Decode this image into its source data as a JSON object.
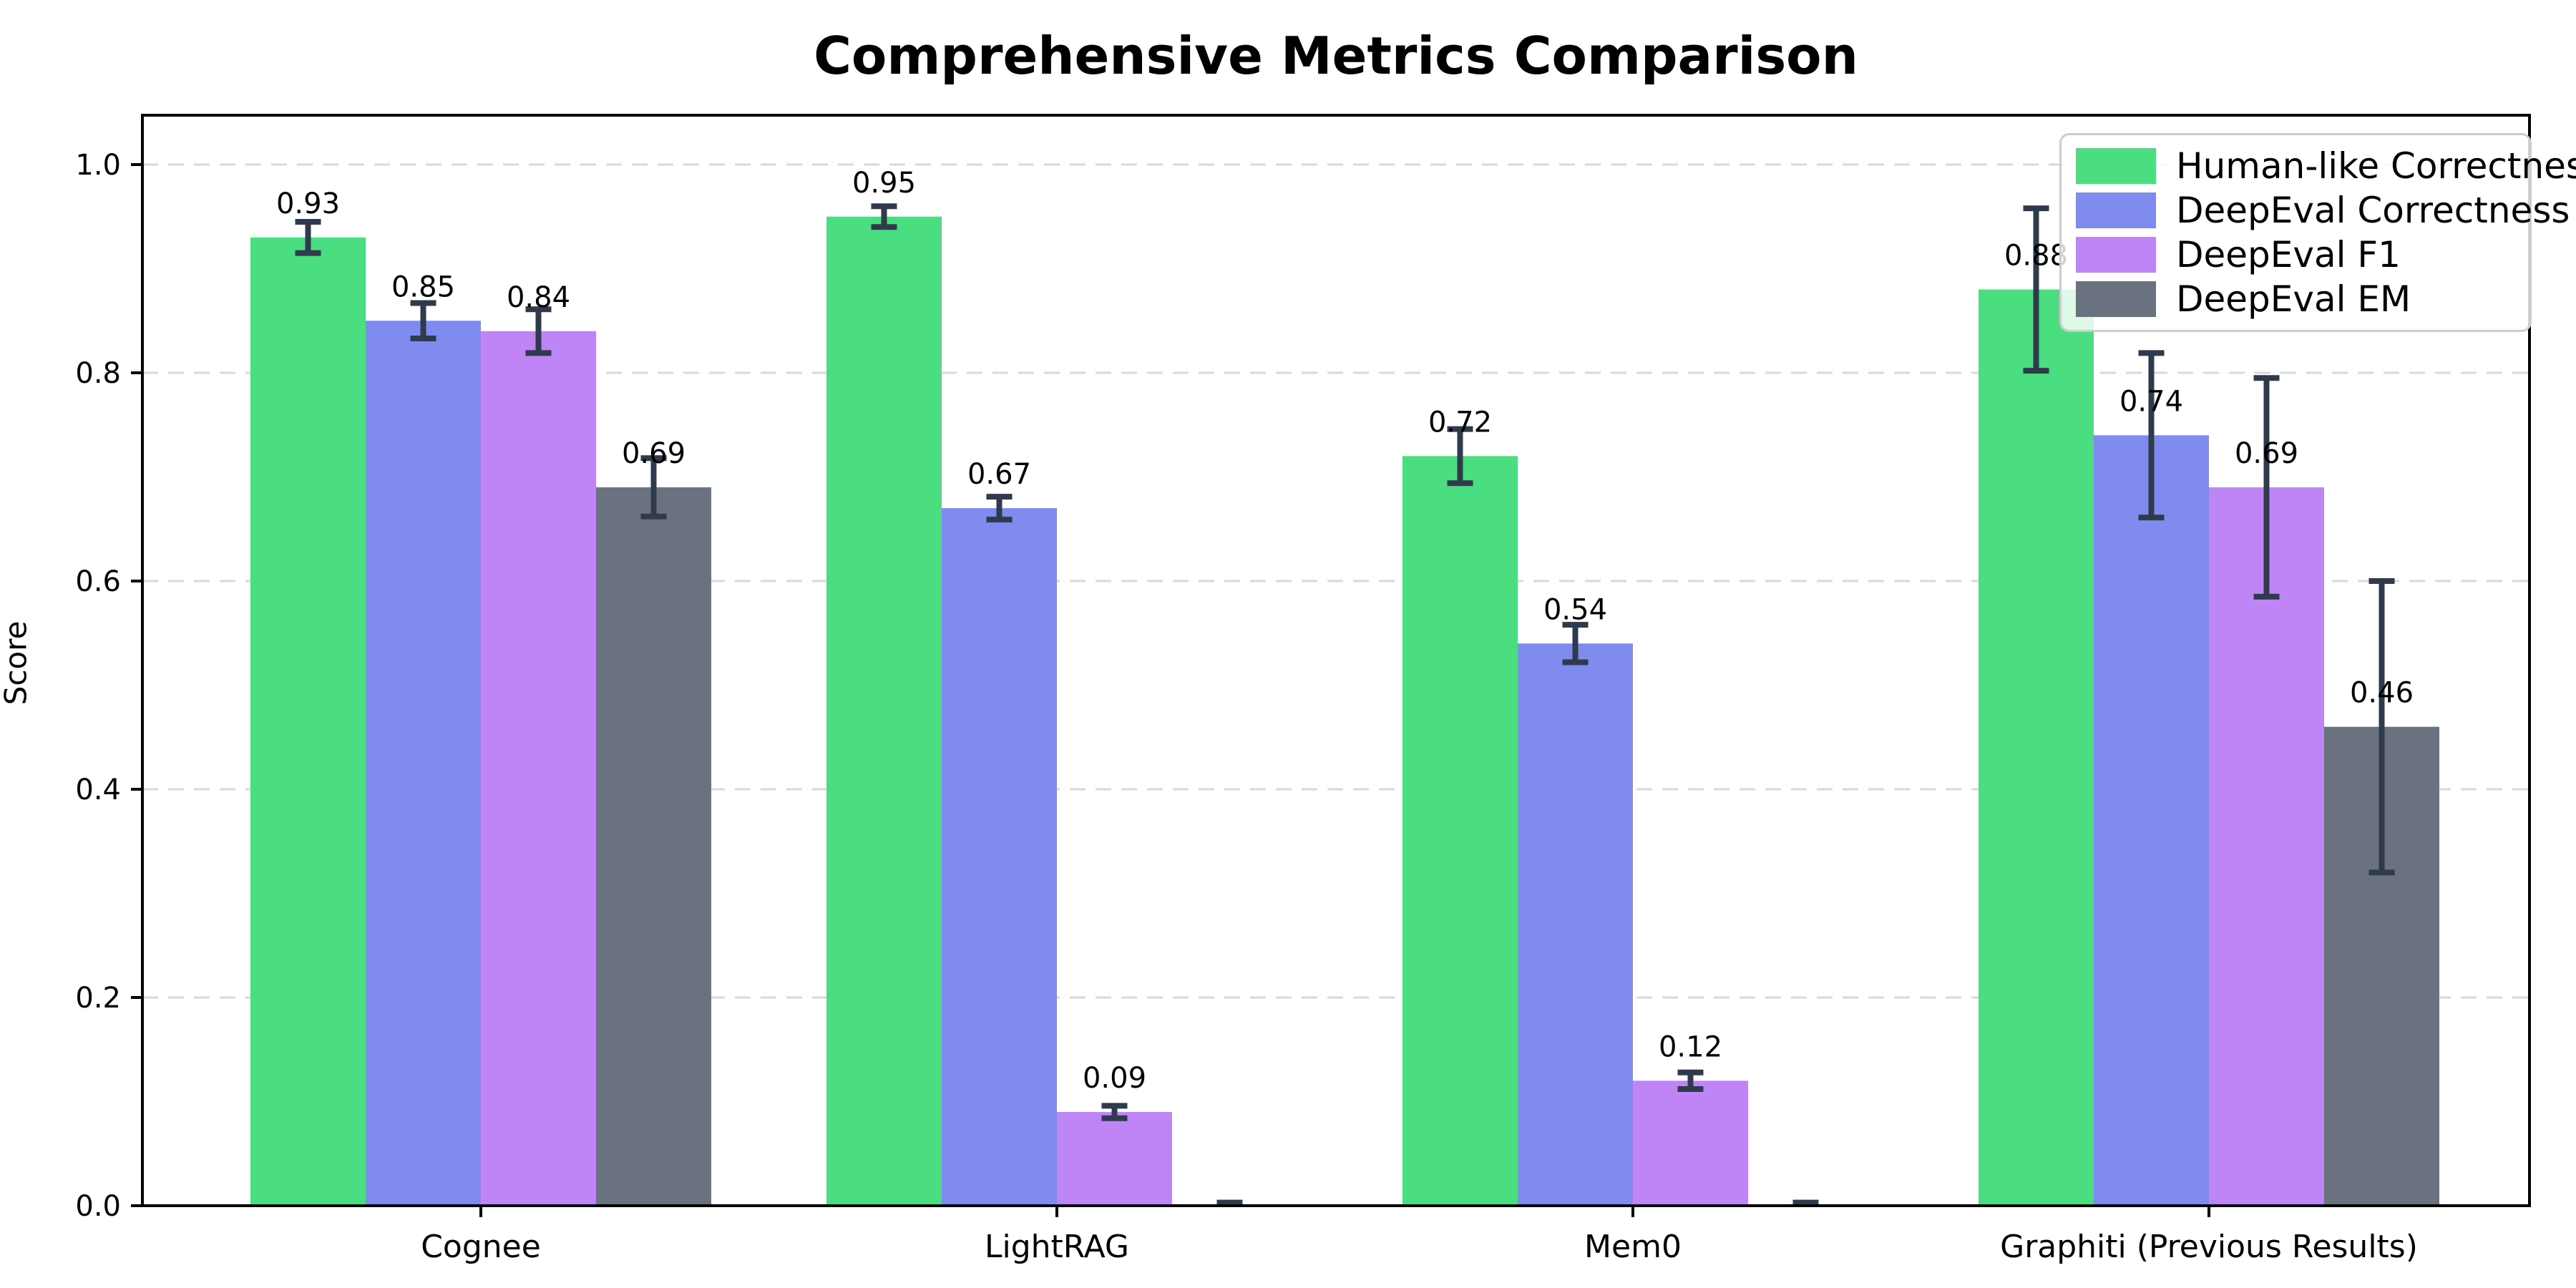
{
  "chart_data": {
    "type": "bar",
    "title": "Comprehensive Metrics Comparison",
    "ylabel": "Score",
    "xlabel": "",
    "categories": [
      "Cognee",
      "LightRAG",
      "Mem0",
      "Graphiti (Previous Results)"
    ],
    "series": [
      {
        "name": "Human-like Correctness",
        "color": "#4ade80",
        "values": [
          0.93,
          0.95,
          0.72,
          0.88
        ],
        "errors": [
          0.015,
          0.01,
          0.026,
          0.078
        ],
        "labels": [
          "0.93",
          "0.95",
          "0.72",
          "0.88"
        ]
      },
      {
        "name": "DeepEval Correctness",
        "color": "#7f8bef",
        "values": [
          0.85,
          0.67,
          0.54,
          0.74
        ],
        "errors": [
          0.017,
          0.011,
          0.018,
          0.079
        ],
        "labels": [
          "0.85",
          "0.67",
          "0.54",
          "0.74"
        ]
      },
      {
        "name": "DeepEval F1",
        "color": "#bf85f6",
        "values": [
          0.84,
          0.09,
          0.12,
          0.69
        ],
        "errors": [
          0.021,
          0.006,
          0.008,
          0.105
        ],
        "labels": [
          "0.84",
          "0.09",
          "0.12",
          "0.69"
        ]
      },
      {
        "name": "DeepEval EM",
        "color": "#6a7280",
        "values": [
          0.69,
          0.0,
          0.0,
          0.46
        ],
        "errors": [
          0.028,
          0.003,
          0.003,
          0.14
        ],
        "labels": [
          "0.69",
          "",
          "",
          "0.46"
        ]
      }
    ],
    "yticks": [
      0.0,
      0.2,
      0.4,
      0.6,
      0.8,
      1.0
    ],
    "ylim": [
      0.0,
      1.0475
    ],
    "grid": "dashed-horizontal",
    "grid_color": "#d9d9d9",
    "error_bar_color": "#2f3a4c",
    "legend_position": "upper-right",
    "axis_color": "#000000",
    "background_color": "#ffffff"
  }
}
